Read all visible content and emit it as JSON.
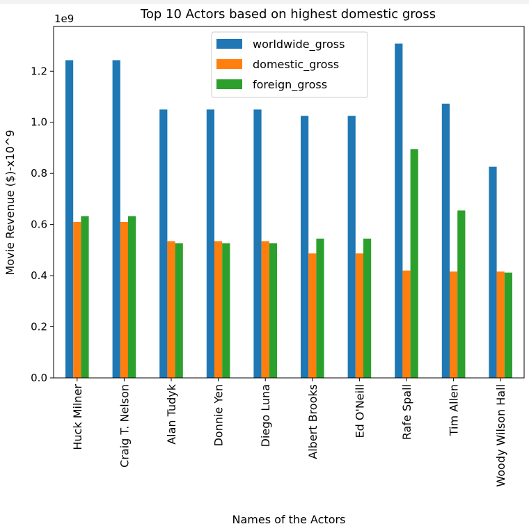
{
  "chart_data": {
    "type": "bar",
    "title": "Top 10 Actors based on highest domestic gross",
    "xlabel": "Names of the Actors",
    "ylabel": "Movie Revenue ($)-x10^9",
    "offset_label": "1e9",
    "ylim": [
      0,
      1.375
    ],
    "yticks": [
      "0.0",
      "0.2",
      "0.4",
      "0.6",
      "0.8",
      "1.0",
      "1.2"
    ],
    "ytick_values": [
      0.0,
      0.2,
      0.4,
      0.6,
      0.8,
      1.0,
      1.2
    ],
    "grid": false,
    "legend_position": "top-center",
    "categories": [
      "Huck Milner",
      "Craig T. Nelson",
      "Alan Tudyk",
      "Donnie Yen",
      "Diego Luna",
      "Albert Brooks",
      "Ed O'Neill",
      "Rafe Spall",
      "Tim Allen",
      "Woody Wilson Hall"
    ],
    "series": [
      {
        "name": "worldwide_gross",
        "color": "#1f77b4",
        "values": [
          1.243,
          1.243,
          1.05,
          1.05,
          1.05,
          1.025,
          1.025,
          1.308,
          1.073,
          0.826
        ]
      },
      {
        "name": "domestic_gross",
        "color": "#ff7f0e",
        "values": [
          0.61,
          0.61,
          0.535,
          0.535,
          0.535,
          0.487,
          0.487,
          0.42,
          0.416,
          0.416
        ]
      },
      {
        "name": "foreign_gross",
        "color": "#2ca02c",
        "values": [
          0.633,
          0.633,
          0.527,
          0.527,
          0.527,
          0.545,
          0.545,
          0.895,
          0.655,
          0.412
        ]
      }
    ]
  }
}
